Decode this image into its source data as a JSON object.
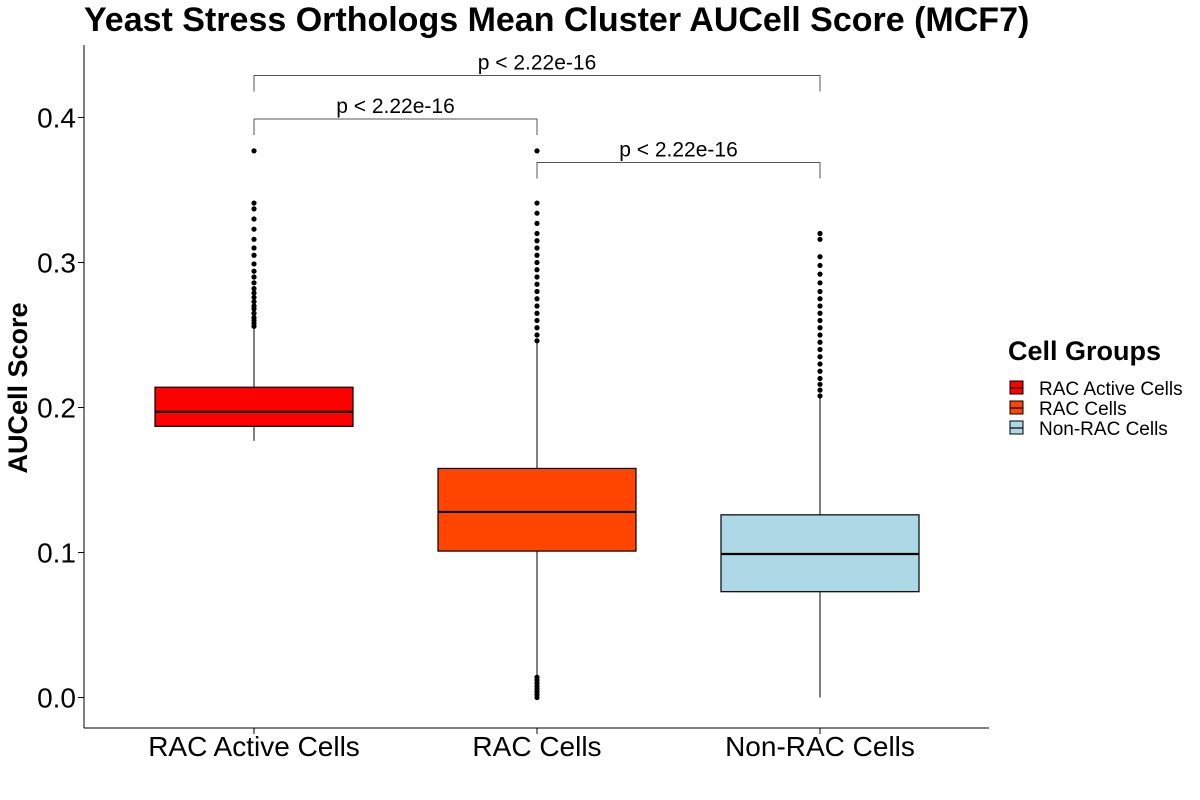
{
  "chart_data": {
    "type": "box",
    "title": "Yeast Stress Orthologs Mean Cluster AUCell Score (MCF7)",
    "xlabel": "",
    "ylabel": "AUCell Score",
    "ylim": [
      -0.021,
      0.45
    ],
    "yticks": [
      0.0,
      0.1,
      0.2,
      0.3,
      0.4
    ],
    "ytick_labels": [
      "0.0",
      "0.1",
      "0.2",
      "0.3",
      "0.4"
    ],
    "categories": [
      "RAC Active Cells",
      "RAC Cells",
      "Non-RAC Cells"
    ],
    "boxes": [
      {
        "category": "RAC Active Cells",
        "whisker_low": 0.177,
        "q1": 0.187,
        "median": 0.197,
        "q3": 0.214,
        "whisker_high": 0.255,
        "fill": "#FF0000",
        "outliers": [
          0.256,
          0.258,
          0.26,
          0.262,
          0.265,
          0.268,
          0.27,
          0.273,
          0.276,
          0.279,
          0.282,
          0.286,
          0.29,
          0.294,
          0.299,
          0.305,
          0.31,
          0.316,
          0.323,
          0.33,
          0.337,
          0.341,
          0.377
        ]
      },
      {
        "category": "RAC Cells",
        "whisker_low": 0.0,
        "q1": 0.101,
        "median": 0.128,
        "q3": 0.158,
        "whisker_high": 0.245,
        "fill": "#FF4500",
        "outliers": [
          0.0,
          0.002,
          0.004,
          0.006,
          0.008,
          0.01,
          0.012,
          0.014,
          0.246,
          0.25,
          0.255,
          0.26,
          0.265,
          0.27,
          0.275,
          0.28,
          0.285,
          0.29,
          0.295,
          0.3,
          0.305,
          0.31,
          0.315,
          0.32,
          0.327,
          0.334,
          0.341,
          0.377
        ]
      },
      {
        "category": "Non-RAC Cells",
        "whisker_low": 0.0,
        "q1": 0.073,
        "median": 0.099,
        "q3": 0.126,
        "whisker_high": 0.207,
        "fill": "#ADD8E6",
        "outliers": [
          0.208,
          0.212,
          0.216,
          0.22,
          0.225,
          0.23,
          0.235,
          0.24,
          0.245,
          0.25,
          0.255,
          0.26,
          0.265,
          0.27,
          0.275,
          0.28,
          0.286,
          0.292,
          0.298,
          0.304,
          0.316,
          0.32
        ]
      }
    ],
    "comparisons": [
      {
        "from": "RAC Active Cells",
        "to": "Non-RAC Cells",
        "y": 0.429,
        "label": "p < 2.22e-16"
      },
      {
        "from": "RAC Active Cells",
        "to": "RAC Cells",
        "y": 0.399,
        "label": "p < 2.22e-16"
      },
      {
        "from": "RAC Cells",
        "to": "Non-RAC Cells",
        "y": 0.369,
        "label": "p < 2.22e-16"
      }
    ],
    "legend": {
      "title": "Cell Groups",
      "placement": "right",
      "entries": [
        {
          "label": "RAC Active Cells",
          "color": "#FF0000"
        },
        {
          "label": "RAC Cells",
          "color": "#FF4500"
        },
        {
          "label": "Non-RAC Cells",
          "color": "#ADD8E6"
        }
      ]
    },
    "grid": false
  }
}
